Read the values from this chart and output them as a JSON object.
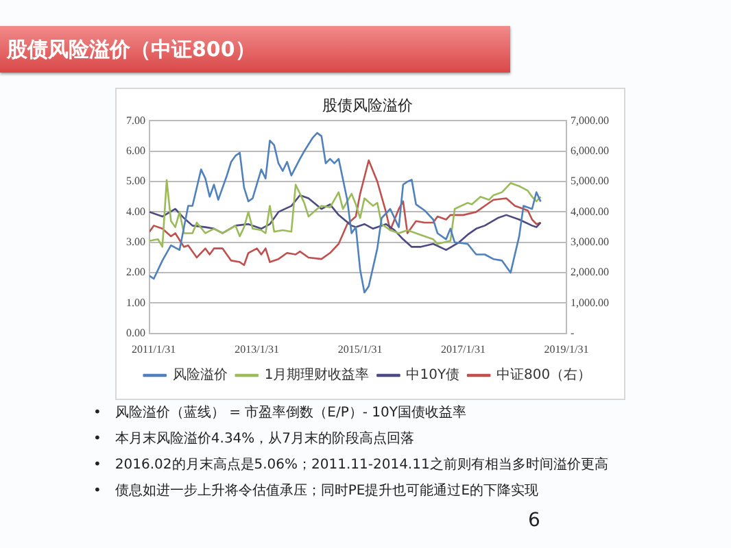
{
  "chart_data": {
    "type": "line",
    "title": "股债风险溢价（中证800）",
    "subtitle": "股债风险溢价",
    "xlim": [
      "2011-01",
      "2019-01-31"
    ],
    "xticks": [
      {
        "value": "2011-01-31",
        "label": "2011/1/31"
      },
      {
        "value": "2013-01-31",
        "label": "2013/1/31"
      },
      {
        "value": "2015-01-31",
        "label": "2015/1/31"
      },
      {
        "value": "2017-01-31",
        "label": "2017/1/31"
      },
      {
        "value": "2019-01-31",
        "label": "2019/1/31"
      }
    ],
    "ylim": [
      0,
      7
    ],
    "yticks": [
      {
        "value": 0,
        "label": "0.00"
      },
      {
        "value": 1,
        "label": "1.00"
      },
      {
        "value": 2,
        "label": "2.00"
      },
      {
        "value": 3,
        "label": "3.00"
      },
      {
        "value": 4,
        "label": "4.00"
      },
      {
        "value": 5,
        "label": "5.00"
      },
      {
        "value": 6,
        "label": "6.00"
      },
      {
        "value": 7,
        "label": "7.00"
      }
    ],
    "y2lim": [
      0,
      7000
    ],
    "y2ticks": [
      {
        "value": 0,
        "label": "-"
      },
      {
        "value": 1000,
        "label": "1,000.00"
      },
      {
        "value": 2000,
        "label": "2,000.00"
      },
      {
        "value": 3000,
        "label": "3,000.00"
      },
      {
        "value": 4000,
        "label": "4,000.00"
      },
      {
        "value": 5000,
        "label": "5,000.00"
      },
      {
        "value": 6000,
        "label": "6,000.00"
      },
      {
        "value": 7000,
        "label": "7,000.00"
      }
    ],
    "grid": "y",
    "legend": "bottom",
    "marker": "none",
    "line_style": "solid",
    "series": [
      {
        "name": "风险溢价",
        "color": "#4f81bd",
        "x": [
          "2011-01",
          "2011-02",
          "2011-04",
          "2011-06",
          "2011-08",
          "2011-10",
          "2011-11",
          "2012-01",
          "2012-02",
          "2012-03",
          "2012-04",
          "2012-05",
          "2012-07",
          "2012-08",
          "2012-09",
          "2012-10",
          "2012-11",
          "2012-12",
          "2013-01",
          "2013-03",
          "2013-04",
          "2013-05",
          "2013-06",
          "2013-07",
          "2013-08",
          "2013-09",
          "2013-10",
          "2013-12",
          "2014-01",
          "2014-03",
          "2014-04",
          "2014-05",
          "2014-06",
          "2014-07",
          "2014-08",
          "2014-09",
          "2014-11",
          "2014-12",
          "2015-01",
          "2015-02",
          "2015-03",
          "2015-04",
          "2015-06",
          "2015-07",
          "2015-09",
          "2015-11",
          "2015-12",
          "2016-01",
          "2016-02",
          "2016-03",
          "2016-05",
          "2016-07",
          "2016-08",
          "2016-10",
          "2016-11",
          "2016-12",
          "2017-03",
          "2017-05",
          "2017-07",
          "2017-09",
          "2017-11",
          "2018-01",
          "2018-03",
          "2018-04",
          "2018-06",
          "2018-07",
          "2018-08"
        ],
        "values": [
          1.9,
          1.8,
          2.4,
          2.9,
          2.75,
          4.2,
          4.2,
          5.4,
          5.1,
          4.5,
          4.9,
          4.4,
          5.2,
          5.65,
          5.85,
          5.95,
          4.8,
          4.35,
          4.45,
          5.4,
          5.1,
          6.35,
          6.2,
          5.6,
          5.35,
          5.65,
          5.2,
          5.75,
          6.0,
          6.45,
          6.6,
          6.5,
          5.6,
          5.75,
          5.6,
          5.75,
          4.4,
          3.3,
          3.5,
          2.1,
          1.35,
          1.55,
          2.8,
          3.8,
          4.1,
          3.5,
          4.9,
          5.0,
          5.06,
          4.25,
          4.05,
          3.75,
          3.3,
          3.1,
          3.45,
          3.0,
          2.95,
          2.6,
          2.6,
          2.45,
          2.4,
          2.0,
          3.2,
          4.2,
          4.1,
          4.65,
          4.34
        ]
      },
      {
        "name": "1月期理财收益率",
        "color": "#9bbb59",
        "x": [
          "2011-01",
          "2011-03",
          "2011-04",
          "2011-05",
          "2011-06",
          "2011-07",
          "2011-08",
          "2011-09",
          "2011-11",
          "2011-12",
          "2012-02",
          "2012-04",
          "2012-06",
          "2012-09",
          "2012-10",
          "2012-11",
          "2012-12",
          "2013-01",
          "2013-03",
          "2013-04",
          "2013-05",
          "2013-06",
          "2013-08",
          "2013-10",
          "2013-11",
          "2014-01",
          "2014-02",
          "2014-04",
          "2014-05",
          "2014-07",
          "2014-09",
          "2014-10",
          "2014-12",
          "2015-01",
          "2015-02",
          "2015-03",
          "2015-05",
          "2015-06",
          "2015-07",
          "2015-09",
          "2015-11",
          "2016-01",
          "2016-04",
          "2016-07",
          "2016-08",
          "2016-11",
          "2016-12",
          "2017-03",
          "2017-04",
          "2017-06",
          "2017-08",
          "2017-09",
          "2017-11",
          "2018-01",
          "2018-03",
          "2018-05",
          "2018-06",
          "2018-07",
          "2018-08"
        ],
        "values": [
          3.05,
          3.1,
          2.85,
          5.05,
          3.7,
          3.5,
          4.0,
          3.3,
          3.3,
          3.65,
          3.3,
          3.45,
          3.3,
          3.55,
          3.2,
          3.5,
          4.0,
          3.45,
          3.4,
          3.3,
          4.2,
          3.35,
          3.4,
          3.35,
          4.9,
          4.3,
          3.85,
          4.1,
          4.2,
          4.15,
          4.65,
          4.1,
          4.6,
          4.25,
          3.8,
          4.45,
          4.2,
          4.3,
          3.6,
          3.4,
          3.3,
          3.4,
          3.25,
          3.1,
          2.95,
          3.05,
          4.1,
          4.3,
          4.25,
          4.5,
          4.4,
          4.55,
          4.65,
          4.95,
          4.85,
          4.7,
          4.5,
          4.35,
          4.5
        ]
      },
      {
        "name": "中10Y债",
        "color": "#4b4a82",
        "x": [
          "2011-01",
          "2011-04",
          "2011-07",
          "2011-09",
          "2011-11",
          "2012-02",
          "2012-04",
          "2012-06",
          "2012-09",
          "2012-12",
          "2013-03",
          "2013-05",
          "2013-07",
          "2013-10",
          "2013-12",
          "2014-02",
          "2014-05",
          "2014-07",
          "2014-09",
          "2014-12",
          "2015-01",
          "2015-03",
          "2015-05",
          "2015-08",
          "2015-10",
          "2015-12",
          "2016-02",
          "2016-04",
          "2016-07",
          "2016-10",
          "2017-01",
          "2017-03",
          "2017-05",
          "2017-07",
          "2017-10",
          "2017-12",
          "2018-03",
          "2018-06",
          "2018-07",
          "2018-08"
        ],
        "values": [
          4.0,
          3.85,
          4.1,
          3.8,
          3.55,
          3.5,
          3.45,
          3.3,
          3.55,
          3.6,
          3.45,
          3.6,
          4.0,
          4.2,
          4.55,
          4.45,
          4.1,
          4.25,
          3.9,
          3.55,
          3.5,
          3.6,
          3.45,
          3.6,
          3.4,
          3.1,
          2.85,
          2.85,
          2.95,
          2.75,
          3.0,
          3.25,
          3.45,
          3.55,
          3.8,
          3.9,
          3.75,
          3.55,
          3.5,
          3.65
        ]
      },
      {
        "name": "中证800（右）",
        "color": "#c0504d",
        "axis": "y2",
        "x": [
          "2011-01",
          "2011-02",
          "2011-04",
          "2011-06",
          "2011-07",
          "2011-09",
          "2011-10",
          "2011-12",
          "2012-02",
          "2012-03",
          "2012-04",
          "2012-06",
          "2012-08",
          "2012-10",
          "2012-11",
          "2012-12",
          "2013-02",
          "2013-03",
          "2013-04",
          "2013-05",
          "2013-07",
          "2013-09",
          "2013-11",
          "2013-12",
          "2014-02",
          "2014-05",
          "2014-07",
          "2014-09",
          "2014-11",
          "2015-01",
          "2015-02",
          "2015-04",
          "2015-06",
          "2015-08",
          "2015-09",
          "2015-11",
          "2015-12",
          "2016-01",
          "2016-03",
          "2016-05",
          "2016-07",
          "2016-08",
          "2016-10",
          "2016-11",
          "2017-02",
          "2017-05",
          "2017-07",
          "2017-09",
          "2017-12",
          "2018-02",
          "2018-05",
          "2018-06",
          "2018-07",
          "2018-08"
        ],
        "values": [
          3350,
          3550,
          3450,
          3200,
          3300,
          2850,
          2900,
          2500,
          2800,
          2600,
          2800,
          2800,
          2400,
          2350,
          2250,
          2650,
          2800,
          2600,
          2800,
          2350,
          2450,
          2650,
          2600,
          2700,
          2500,
          2450,
          2650,
          2950,
          3600,
          3850,
          4600,
          5700,
          5000,
          4000,
          3400,
          4100,
          4350,
          3300,
          3700,
          3650,
          3650,
          3850,
          3750,
          3900,
          3900,
          4000,
          4200,
          4400,
          4450,
          4200,
          4050,
          3750,
          3600,
          3650
        ]
      }
    ],
    "annotations": [
      "•　风险溢价（蓝线） = 市盈率倒数（E/P）- 10Y国债收益率",
      "•　本月末风险溢价4.34%，从7月末的阶段高点回落",
      "•　2016.02的月末高点是5.06%；2011.11-2014.11之前则有相当多时间溢价更高",
      "•　债息如进一步上升将令估值承压；同时PE提升也可能通过E的下降实现",
      "6"
    ]
  }
}
